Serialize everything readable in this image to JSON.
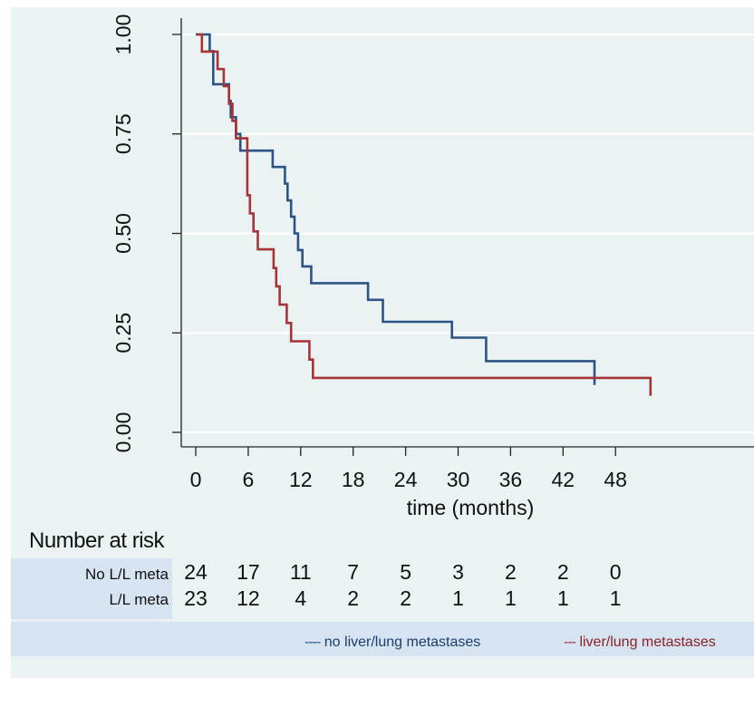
{
  "chart_data": {
    "type": "line",
    "title": "",
    "xlabel": "time (months)",
    "ylabel": "",
    "xlim": [
      0,
      53
    ],
    "ylim": [
      0,
      1
    ],
    "x_ticks": [
      0,
      6,
      12,
      18,
      24,
      30,
      36,
      42,
      48
    ],
    "y_ticks": [
      "0.00",
      "0.25",
      "0.50",
      "0.75",
      "1.00"
    ],
    "grid": true,
    "series": [
      {
        "name": "no liver/lung metastases",
        "color": "#2c5484",
        "step": true,
        "x": [
          0,
          1.6,
          2.0,
          3.8,
          4.0,
          4.6,
          5.1,
          8.8,
          10.2,
          10.5,
          10.9,
          11.3,
          11.7,
          12.2,
          13.2,
          19.7,
          21.4,
          29.3,
          33.2,
          45.6
        ],
        "y": [
          1.0,
          0.958,
          0.875,
          0.833,
          0.792,
          0.75,
          0.708,
          0.667,
          0.625,
          0.583,
          0.542,
          0.5,
          0.458,
          0.417,
          0.375,
          0.333,
          0.278,
          0.238,
          0.179,
          0.119
        ]
      },
      {
        "name": "liver/lung metastases",
        "color": "#a83337",
        "step": true,
        "x": [
          0,
          0.7,
          2.5,
          3.2,
          3.8,
          4.2,
          4.6,
          5.9,
          6.2,
          6.6,
          7.1,
          8.9,
          9.2,
          9.6,
          10.4,
          10.9,
          13.0,
          13.4,
          52.0
        ],
        "y": [
          1.0,
          0.957,
          0.913,
          0.87,
          0.826,
          0.783,
          0.739,
          0.596,
          0.55,
          0.505,
          0.46,
          0.413,
          0.367,
          0.321,
          0.275,
          0.229,
          0.183,
          0.137,
          0.092
        ]
      }
    ],
    "risk_table": {
      "title": "Number at risk",
      "rows": [
        {
          "label": "No L/L meta",
          "values": [
            "24",
            "17",
            "11",
            "7",
            "5",
            "3",
            "2",
            "2",
            "0"
          ]
        },
        {
          "label": "L/L meta",
          "values": [
            "23",
            "12",
            "4",
            "2",
            "2",
            "1",
            "1",
            "1",
            "1"
          ]
        }
      ]
    },
    "legend": {
      "placement": "bottom",
      "items": [
        {
          "dash": "----",
          "label": "no liver/lung metastases",
          "color": "#2c5484"
        },
        {
          "dash": "---",
          "label": "liver/lung metastases",
          "color": "#a83337"
        }
      ]
    }
  }
}
